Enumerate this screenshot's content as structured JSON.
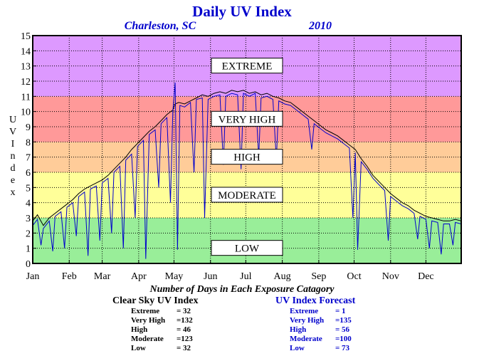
{
  "title": "Daily UV Index",
  "subtitle_location": "Charleston, SC",
  "subtitle_year": "2010",
  "chart_data": {
    "type": "line",
    "ylabel": "UV Index",
    "ylim": [
      0,
      15
    ],
    "yticks": [
      0,
      1,
      2,
      3,
      4,
      5,
      6,
      7,
      8,
      9,
      10,
      11,
      12,
      13,
      14,
      15
    ],
    "xlim": [
      1,
      365
    ],
    "months": [
      {
        "label": "Jan",
        "day": 1
      },
      {
        "label": "Feb",
        "day": 32
      },
      {
        "label": "Mar",
        "day": 60
      },
      {
        "label": "Apr",
        "day": 91
      },
      {
        "label": "May",
        "day": 121
      },
      {
        "label": "Jun",
        "day": 152
      },
      {
        "label": "Jul",
        "day": 182
      },
      {
        "label": "Aug",
        "day": 213
      },
      {
        "label": "Sep",
        "day": 244
      },
      {
        "label": "Oct",
        "day": 274
      },
      {
        "label": "Nov",
        "day": 305
      },
      {
        "label": "Dec",
        "day": 335
      }
    ],
    "bands": [
      {
        "label": "LOW",
        "from": 0,
        "to": 3,
        "color": "#99ee99",
        "label_y": 1
      },
      {
        "label": "MODERATE",
        "from": 3,
        "to": 6,
        "color": "#ffff99",
        "label_y": 4.5
      },
      {
        "label": "HIGH",
        "from": 6,
        "to": 8,
        "color": "#ffcc99",
        "label_y": 7
      },
      {
        "label": "VERY HIGH",
        "from": 8,
        "to": 11,
        "color": "#ff9999",
        "label_y": 9.5
      },
      {
        "label": "EXTREME",
        "from": 11,
        "to": 15,
        "color": "#dd99ff",
        "label_y": 13
      }
    ],
    "grid": true,
    "series": [
      {
        "color": "#000000",
        "points": [
          [
            1,
            2.8
          ],
          [
            5,
            3.2
          ],
          [
            10,
            2.5
          ],
          [
            15,
            3.0
          ],
          [
            20,
            3.3
          ],
          [
            25,
            3.6
          ],
          [
            30,
            3.9
          ],
          [
            35,
            4.2
          ],
          [
            40,
            4.6
          ],
          [
            45,
            4.9
          ],
          [
            50,
            5.1
          ],
          [
            55,
            5.3
          ],
          [
            60,
            5.5
          ],
          [
            65,
            5.8
          ],
          [
            70,
            6.2
          ],
          [
            75,
            6.6
          ],
          [
            80,
            7.0
          ],
          [
            85,
            7.5
          ],
          [
            90,
            7.9
          ],
          [
            95,
            8.3
          ],
          [
            100,
            8.7
          ],
          [
            105,
            9.0
          ],
          [
            110,
            9.4
          ],
          [
            115,
            9.8
          ],
          [
            120,
            10.1
          ],
          [
            122,
            10.5
          ],
          [
            125,
            10.6
          ],
          [
            130,
            10.5
          ],
          [
            135,
            10.7
          ],
          [
            140,
            10.9
          ],
          [
            145,
            11.1
          ],
          [
            150,
            11.0
          ],
          [
            155,
            11.2
          ],
          [
            160,
            11.3
          ],
          [
            165,
            11.2
          ],
          [
            170,
            11.4
          ],
          [
            175,
            11.3
          ],
          [
            180,
            11.4
          ],
          [
            185,
            11.2
          ],
          [
            190,
            11.3
          ],
          [
            195,
            11.1
          ],
          [
            200,
            11.2
          ],
          [
            205,
            11.0
          ],
          [
            210,
            10.9
          ],
          [
            215,
            10.7
          ],
          [
            220,
            10.6
          ],
          [
            225,
            10.3
          ],
          [
            230,
            10.0
          ],
          [
            235,
            9.7
          ],
          [
            240,
            9.4
          ],
          [
            245,
            9.1
          ],
          [
            250,
            8.8
          ],
          [
            255,
            8.6
          ],
          [
            260,
            8.4
          ],
          [
            265,
            8.1
          ],
          [
            270,
            7.8
          ],
          [
            275,
            7.5
          ],
          [
            280,
            6.9
          ],
          [
            285,
            6.4
          ],
          [
            290,
            5.8
          ],
          [
            295,
            5.4
          ],
          [
            300,
            5.0
          ],
          [
            305,
            4.6
          ],
          [
            310,
            4.3
          ],
          [
            315,
            4.0
          ],
          [
            320,
            3.8
          ],
          [
            325,
            3.5
          ],
          [
            330,
            3.3
          ],
          [
            335,
            3.1
          ],
          [
            340,
            3.0
          ],
          [
            345,
            2.9
          ],
          [
            350,
            2.8
          ],
          [
            355,
            2.8
          ],
          [
            360,
            2.9
          ],
          [
            365,
            2.8
          ]
        ]
      },
      {
        "color": "#0000cc",
        "points": [
          [
            1,
            2.5
          ],
          [
            5,
            2.9
          ],
          [
            8,
            1.2
          ],
          [
            10,
            2.3
          ],
          [
            15,
            2.8
          ],
          [
            18,
            0.8
          ],
          [
            20,
            3.1
          ],
          [
            25,
            3.4
          ],
          [
            28,
            1.0
          ],
          [
            30,
            3.7
          ],
          [
            35,
            4.0
          ],
          [
            38,
            1.8
          ],
          [
            40,
            4.4
          ],
          [
            45,
            4.7
          ],
          [
            48,
            0.5
          ],
          [
            50,
            4.9
          ],
          [
            55,
            5.1
          ],
          [
            58,
            1.5
          ],
          [
            60,
            5.3
          ],
          [
            65,
            5.6
          ],
          [
            68,
            2.0
          ],
          [
            70,
            6.0
          ],
          [
            75,
            6.4
          ],
          [
            78,
            1.0
          ],
          [
            80,
            6.8
          ],
          [
            85,
            7.2
          ],
          [
            88,
            3.0
          ],
          [
            90,
            7.7
          ],
          [
            95,
            8.1
          ],
          [
            97,
            0.3
          ],
          [
            100,
            8.5
          ],
          [
            105,
            8.8
          ],
          [
            108,
            5.0
          ],
          [
            110,
            9.2
          ],
          [
            115,
            9.6
          ],
          [
            118,
            4.0
          ],
          [
            120,
            10.0
          ],
          [
            122,
            11.9
          ],
          [
            124,
            0.9
          ],
          [
            126,
            10.4
          ],
          [
            130,
            10.3
          ],
          [
            135,
            10.6
          ],
          [
            138,
            6.0
          ],
          [
            140,
            10.8
          ],
          [
            145,
            10.9
          ],
          [
            147,
            3.0
          ],
          [
            150,
            10.8
          ],
          [
            155,
            11.0
          ],
          [
            160,
            11.1
          ],
          [
            163,
            6.5
          ],
          [
            165,
            11.0
          ],
          [
            170,
            11.2
          ],
          [
            175,
            11.1
          ],
          [
            178,
            6.2
          ],
          [
            180,
            11.2
          ],
          [
            185,
            11.0
          ],
          [
            190,
            11.2
          ],
          [
            193,
            7.0
          ],
          [
            195,
            10.9
          ],
          [
            200,
            11.0
          ],
          [
            205,
            10.8
          ],
          [
            208,
            6.8
          ],
          [
            210,
            10.7
          ],
          [
            215,
            10.5
          ],
          [
            220,
            10.4
          ],
          [
            225,
            10.1
          ],
          [
            230,
            9.8
          ],
          [
            235,
            9.5
          ],
          [
            238,
            7.5
          ],
          [
            240,
            9.2
          ],
          [
            245,
            8.9
          ],
          [
            250,
            8.6
          ],
          [
            255,
            8.4
          ],
          [
            260,
            8.2
          ],
          [
            265,
            7.9
          ],
          [
            270,
            7.6
          ],
          [
            273,
            3.0
          ],
          [
            275,
            7.3
          ],
          [
            277,
            0.9
          ],
          [
            280,
            6.7
          ],
          [
            285,
            6.2
          ],
          [
            290,
            5.6
          ],
          [
            295,
            5.2
          ],
          [
            300,
            4.8
          ],
          [
            303,
            1.5
          ],
          [
            305,
            4.4
          ],
          [
            310,
            4.1
          ],
          [
            315,
            3.8
          ],
          [
            320,
            3.6
          ],
          [
            325,
            3.3
          ],
          [
            328,
            1.6
          ],
          [
            330,
            3.1
          ],
          [
            335,
            2.9
          ],
          [
            338,
            1.0
          ],
          [
            340,
            2.8
          ],
          [
            345,
            2.7
          ],
          [
            348,
            0.6
          ],
          [
            350,
            2.6
          ],
          [
            355,
            2.6
          ],
          [
            358,
            1.2
          ],
          [
            360,
            2.7
          ],
          [
            365,
            2.6
          ]
        ]
      }
    ]
  },
  "note": "Number of Days in Each Exposure Catagory",
  "clear_sky": {
    "heading": "Clear Sky UV Index",
    "rows": [
      {
        "name": "Extreme",
        "value": "= 32"
      },
      {
        "name": "Very High",
        "value": "=132"
      },
      {
        "name": "High",
        "value": "= 46"
      },
      {
        "name": "Moderate",
        "value": "=123"
      },
      {
        "name": "Low",
        "value": "= 32"
      }
    ]
  },
  "forecast": {
    "heading": "UV Index Forecast",
    "rows": [
      {
        "name": "Extreme",
        "value": "= 1"
      },
      {
        "name": "Very High",
        "value": "=135"
      },
      {
        "name": "High",
        "value": "= 56"
      },
      {
        "name": "Moderate",
        "value": "=100"
      },
      {
        "name": "Low",
        "value": "= 73"
      }
    ]
  }
}
